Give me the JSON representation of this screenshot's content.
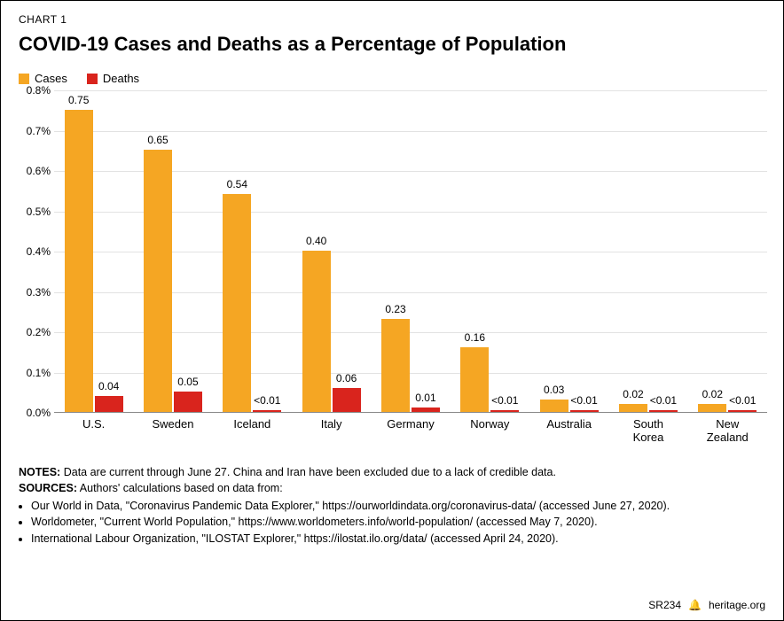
{
  "header": {
    "chart_label": "CHART 1",
    "title": "COVID-19 Cases and Deaths as a Percentage of Population"
  },
  "legend": {
    "items": [
      {
        "label": "Cases",
        "color": "#f5a623"
      },
      {
        "label": "Deaths",
        "color": "#d9241d"
      }
    ]
  },
  "chart": {
    "type": "bar",
    "ylim": [
      0.0,
      0.8
    ],
    "ytick_step": 0.1,
    "y_tick_labels": [
      "0.0%",
      "0.1%",
      "0.2%",
      "0.3%",
      "0.4%",
      "0.5%",
      "0.6%",
      "0.7%",
      "0.8%"
    ],
    "grid_color": "#e2e2e2",
    "axis_color": "#888888",
    "background_color": "#ffffff",
    "bar_colors": {
      "cases": "#f5a623",
      "deaths": "#d9241d"
    },
    "label_fontsize": 12,
    "category_fontsize": 13,
    "bar_width_pct": 36,
    "bar_gap_pct": 2,
    "categories": [
      {
        "name": "U.S.",
        "cases": 0.75,
        "cases_label": "0.75",
        "deaths": 0.04,
        "deaths_label": "0.04"
      },
      {
        "name": "Sweden",
        "cases": 0.65,
        "cases_label": "0.65",
        "deaths": 0.05,
        "deaths_label": "0.05"
      },
      {
        "name": "Iceland",
        "cases": 0.54,
        "cases_label": "0.54",
        "deaths": 0.005,
        "deaths_label": "<0.01"
      },
      {
        "name": "Italy",
        "cases": 0.4,
        "cases_label": "0.40",
        "deaths": 0.06,
        "deaths_label": "0.06"
      },
      {
        "name": "Germany",
        "cases": 0.23,
        "cases_label": "0.23",
        "deaths": 0.01,
        "deaths_label": "0.01"
      },
      {
        "name": "Norway",
        "cases": 0.16,
        "cases_label": "0.16",
        "deaths": 0.005,
        "deaths_label": "<0.01"
      },
      {
        "name": "Australia",
        "cases": 0.03,
        "cases_label": "0.03",
        "deaths": 0.005,
        "deaths_label": "<0.01"
      },
      {
        "name": "South Korea",
        "cases": 0.02,
        "cases_label": "0.02",
        "deaths": 0.005,
        "deaths_label": "<0.01"
      },
      {
        "name": "New Zealand",
        "cases": 0.02,
        "cases_label": "0.02",
        "deaths": 0.005,
        "deaths_label": "<0.01"
      }
    ]
  },
  "notes": {
    "notes_label": "NOTES:",
    "notes_text": "Data are current through June 27. China and Iran have been excluded due to a lack of credible data.",
    "sources_label": "SOURCES:",
    "sources_intro": "Authors' calculations based on data from:",
    "sources": [
      "Our World in Data, \"Coronavirus Pandemic Data Explorer,\" https://ourworldindata.org/coronavirus-data/ (accessed June 27, 2020).",
      "Worldometer, \"Current World Population,\" https://www.worldometers.info/world-population/ (accessed May 7, 2020).",
      "International Labour Organization, \"ILOSTAT Explorer,\" https://ilostat.ilo.org/data/ (accessed April 24, 2020)."
    ]
  },
  "footer": {
    "code": "SR234",
    "site": "heritage.org"
  }
}
